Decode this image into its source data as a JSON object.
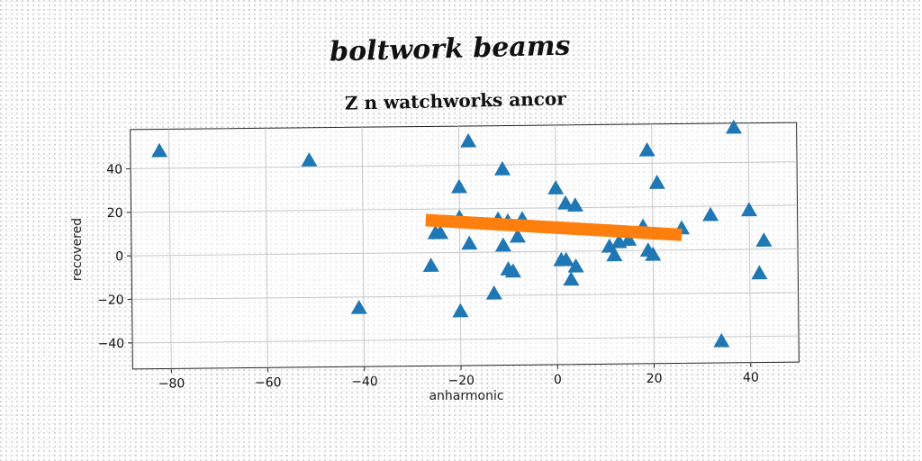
{
  "banner": {
    "title": "boltwork beams"
  },
  "chart_data": {
    "type": "scatter",
    "title": "Z n watchworks ancor",
    "xlabel": "anharmonic",
    "ylabel": "recovered",
    "xlim": [
      -88,
      50
    ],
    "ylim": [
      -52,
      58
    ],
    "xticks": [
      -80,
      -60,
      -40,
      -20,
      0,
      20,
      40
    ],
    "yticks": [
      -40,
      -20,
      0,
      20,
      40
    ],
    "xtick_labels": [
      "−80",
      "−60",
      "−40",
      "−20",
      "0",
      "20",
      "40"
    ],
    "ytick_labels": [
      "−40",
      "−20",
      "0",
      "20",
      "40"
    ],
    "grid": true,
    "series": [
      {
        "marker": "triangle",
        "color": "#1f77b4",
        "points": [
          [
            -82,
            48
          ],
          [
            -51,
            43
          ],
          [
            -41,
            -25
          ],
          [
            -26,
            -6
          ],
          [
            -25,
            9
          ],
          [
            -24,
            9
          ],
          [
            -20,
            30
          ],
          [
            -20,
            16
          ],
          [
            -20,
            -27
          ],
          [
            -18,
            4
          ],
          [
            -18,
            51
          ],
          [
            -13,
            -19
          ],
          [
            -12,
            15
          ],
          [
            -11,
            38
          ],
          [
            -11,
            3
          ],
          [
            -10,
            -8
          ],
          [
            -10,
            14
          ],
          [
            -9,
            -9
          ],
          [
            -8,
            7
          ],
          [
            -7,
            15
          ],
          [
            0,
            29
          ],
          [
            1,
            -4
          ],
          [
            2,
            -4
          ],
          [
            2,
            22
          ],
          [
            3,
            -13
          ],
          [
            4,
            21
          ],
          [
            4,
            -7
          ],
          [
            11,
            2
          ],
          [
            12,
            -2
          ],
          [
            13,
            4
          ],
          [
            15,
            5
          ],
          [
            18,
            11
          ],
          [
            19,
            46
          ],
          [
            19,
            0
          ],
          [
            20,
            -2
          ],
          [
            21,
            31
          ],
          [
            26,
            10
          ],
          [
            32,
            16
          ],
          [
            34,
            -42
          ],
          [
            37,
            56
          ],
          [
            40,
            18
          ],
          [
            42,
            -11
          ],
          [
            43,
            4
          ]
        ]
      },
      {
        "type": "line",
        "color": "#ff7f0e",
        "x": [
          -27,
          26
        ],
        "y": [
          15,
          7
        ]
      }
    ]
  }
}
